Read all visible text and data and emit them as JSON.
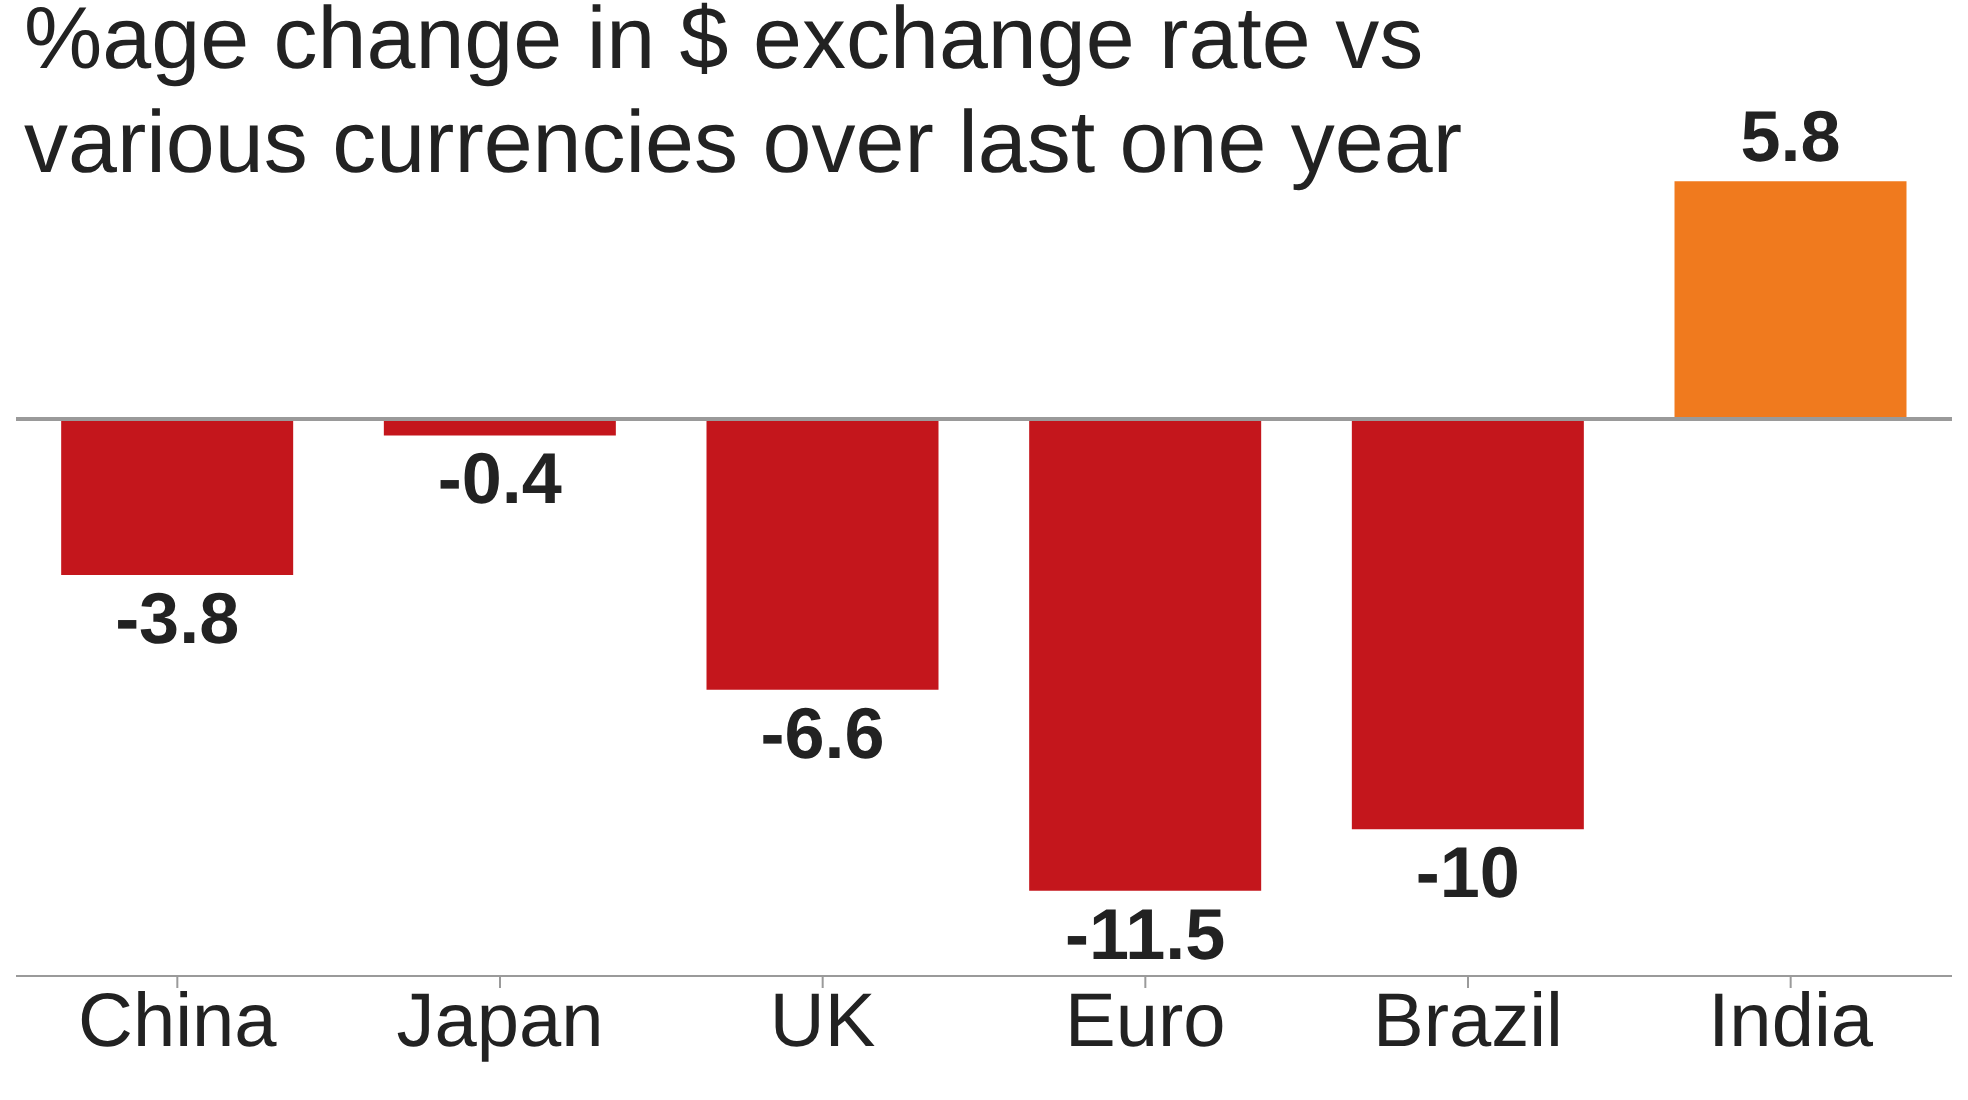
{
  "chart_data": {
    "type": "bar",
    "title": "%age change in $ exchange rate vs various currencies over last one year",
    "categories": [
      "China",
      "Japan",
      "UK",
      "Euro",
      "Brazil",
      "India"
    ],
    "values": [
      -3.8,
      -0.4,
      -6.6,
      -11.5,
      -10,
      5.8
    ],
    "colors": [
      "#c4161c",
      "#c4161c",
      "#c4161c",
      "#c4161c",
      "#c4161c",
      "#f07a1e"
    ],
    "data_labels": true,
    "ref_lines": [
      {
        "axis": "y",
        "value": 0,
        "color": "#9a9a9a"
      }
    ]
  }
}
